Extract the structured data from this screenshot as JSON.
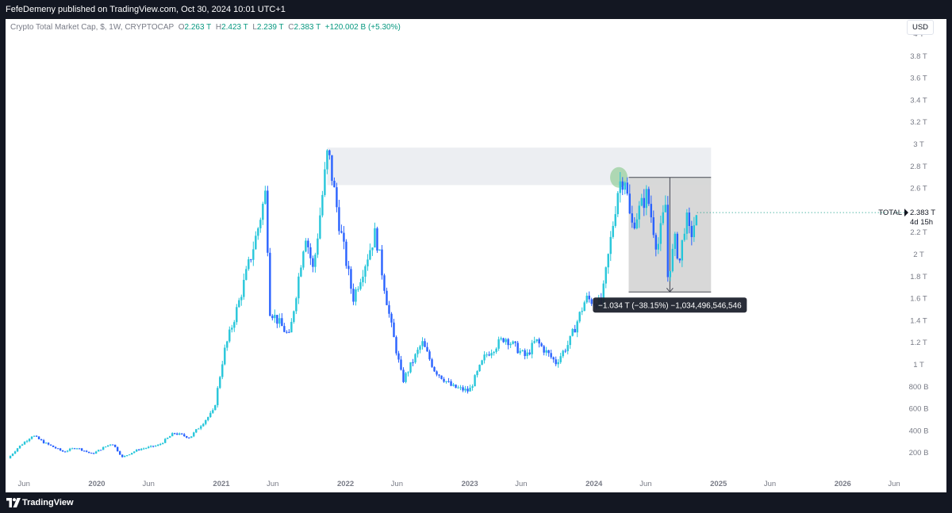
{
  "header": {
    "published_line": "FefeDemeny published on TradingView.com, Oct 30, 2024 10:01 UTC+1"
  },
  "legend": {
    "symbol": "Crypto Total Market Cap, $, 1W, CRYPTOCAP",
    "o_label": "O",
    "o_value": "2.263 T",
    "h_label": "H",
    "h_value": "2.423 T",
    "l_label": "L",
    "l_value": "2.239 T",
    "c_label": "C",
    "c_value": "2.383 T",
    "change": "+120.002 B (+5.30%)"
  },
  "currency_button": "USD",
  "footer": {
    "brand": "TradingView"
  },
  "colors": {
    "up": "#26c6da",
    "down": "#2962ff",
    "zone_fill": "#eceef2",
    "measure_fill": "#d6d6d6",
    "price_value": "#089981"
  },
  "chart_data": {
    "type": "candlestick",
    "symbol": "CRYPTOCAP:TOTAL",
    "interval": "1W",
    "x_ticks": [
      "Jun",
      "2020",
      "Jun",
      "2021",
      "Jun",
      "2022",
      "Jun",
      "2023",
      "Jun",
      "2024",
      "Jun",
      "2025",
      "Jun",
      "2026",
      "Jun"
    ],
    "x_tick_dates": [
      "2019-06-01",
      "2020-01-01",
      "2020-06-01",
      "2021-01-01",
      "2021-06-01",
      "2022-01-01",
      "2022-06-01",
      "2023-01-01",
      "2023-06-01",
      "2024-01-01",
      "2024-06-01",
      "2025-01-01",
      "2025-06-01",
      "2026-01-01",
      "2026-06-01"
    ],
    "y_ticks": [
      "200 B",
      "400 B",
      "600 B",
      "800 B",
      "1 T",
      "1.2 T",
      "1.4 T",
      "1.6 T",
      "1.8 T",
      "2 T",
      "2.2 T",
      "2.4 T",
      "2.6 T",
      "2.8 T",
      "3 T",
      "3.2 T",
      "3.4 T",
      "3.6 T",
      "3.8 T",
      "4 T"
    ],
    "y_tick_values": [
      0.2,
      0.4,
      0.6,
      0.8,
      1.0,
      1.2,
      1.4,
      1.6,
      1.8,
      2.0,
      2.2,
      2.4,
      2.6,
      2.8,
      3.0,
      3.2,
      3.4,
      3.6,
      3.8,
      4.0
    ],
    "y_unit": "trillion USD",
    "close_path": [
      [
        "2019-04-15",
        0.15
      ],
      [
        "2019-05-15",
        0.25
      ],
      [
        "2019-06-26",
        0.36
      ],
      [
        "2019-08-01",
        0.29
      ],
      [
        "2019-09-25",
        0.21
      ],
      [
        "2019-11-01",
        0.25
      ],
      [
        "2019-12-18",
        0.19
      ],
      [
        "2020-02-15",
        0.29
      ],
      [
        "2020-03-16",
        0.16
      ],
      [
        "2020-05-01",
        0.23
      ],
      [
        "2020-07-01",
        0.27
      ],
      [
        "2020-08-15",
        0.38
      ],
      [
        "2020-10-01",
        0.34
      ],
      [
        "2020-11-15",
        0.5
      ],
      [
        "2020-12-10",
        0.58
      ],
      [
        "2021-01-08",
        1.1
      ],
      [
        "2021-02-20",
        1.55
      ],
      [
        "2021-04-16",
        2.2
      ],
      [
        "2021-05-12",
        2.58
      ],
      [
        "2021-05-23",
        1.5
      ],
      [
        "2021-07-20",
        1.25
      ],
      [
        "2021-09-05",
        2.2
      ],
      [
        "2021-09-28",
        1.85
      ],
      [
        "2021-11-10",
        2.95
      ],
      [
        "2021-12-15",
        2.25
      ],
      [
        "2022-01-23",
        1.6
      ],
      [
        "2022-03-30",
        2.2
      ],
      [
        "2022-05-12",
        1.4
      ],
      [
        "2022-06-18",
        0.85
      ],
      [
        "2022-08-14",
        1.2
      ],
      [
        "2022-09-20",
        0.95
      ],
      [
        "2022-11-10",
        0.8
      ],
      [
        "2022-12-30",
        0.76
      ],
      [
        "2023-02-15",
        1.08
      ],
      [
        "2023-04-14",
        1.25
      ],
      [
        "2023-06-15",
        1.07
      ],
      [
        "2023-07-14",
        1.22
      ],
      [
        "2023-09-11",
        1.02
      ],
      [
        "2023-10-20",
        1.2
      ],
      [
        "2023-12-08",
        1.6
      ],
      [
        "2024-01-23",
        1.55
      ],
      [
        "2024-03-14",
        2.65
      ],
      [
        "2024-04-01",
        2.7
      ],
      [
        "2024-04-19",
        2.25
      ],
      [
        "2024-06-05",
        2.55
      ],
      [
        "2024-07-05",
        2.05
      ],
      [
        "2024-07-29",
        2.45
      ],
      [
        "2024-08-05",
        1.8
      ],
      [
        "2024-08-28",
        2.15
      ],
      [
        "2024-09-07",
        1.9
      ],
      [
        "2024-09-27",
        2.35
      ],
      [
        "2024-10-10",
        2.15
      ],
      [
        "2024-10-30",
        2.38
      ]
    ],
    "last_price": {
      "label": "TOTAL",
      "value": "2.383 T",
      "countdown": "4d 15h"
    },
    "annotations": {
      "resistance_zone": {
        "x_from": "2021-11-08",
        "x_to": "2024-12-10",
        "y_from": 2.63,
        "y_to": 2.97
      },
      "highlight_circle": {
        "x": "2024-03-14",
        "y": 2.7,
        "color": "#7bc47f"
      },
      "measure_box": {
        "x_from": "2024-04-12",
        "x_to": "2024-12-10",
        "y_from": 1.66,
        "y_to": 2.7
      },
      "measure_label": "−1.034 T (−38.15%) −1,034,496,546,546"
    }
  }
}
